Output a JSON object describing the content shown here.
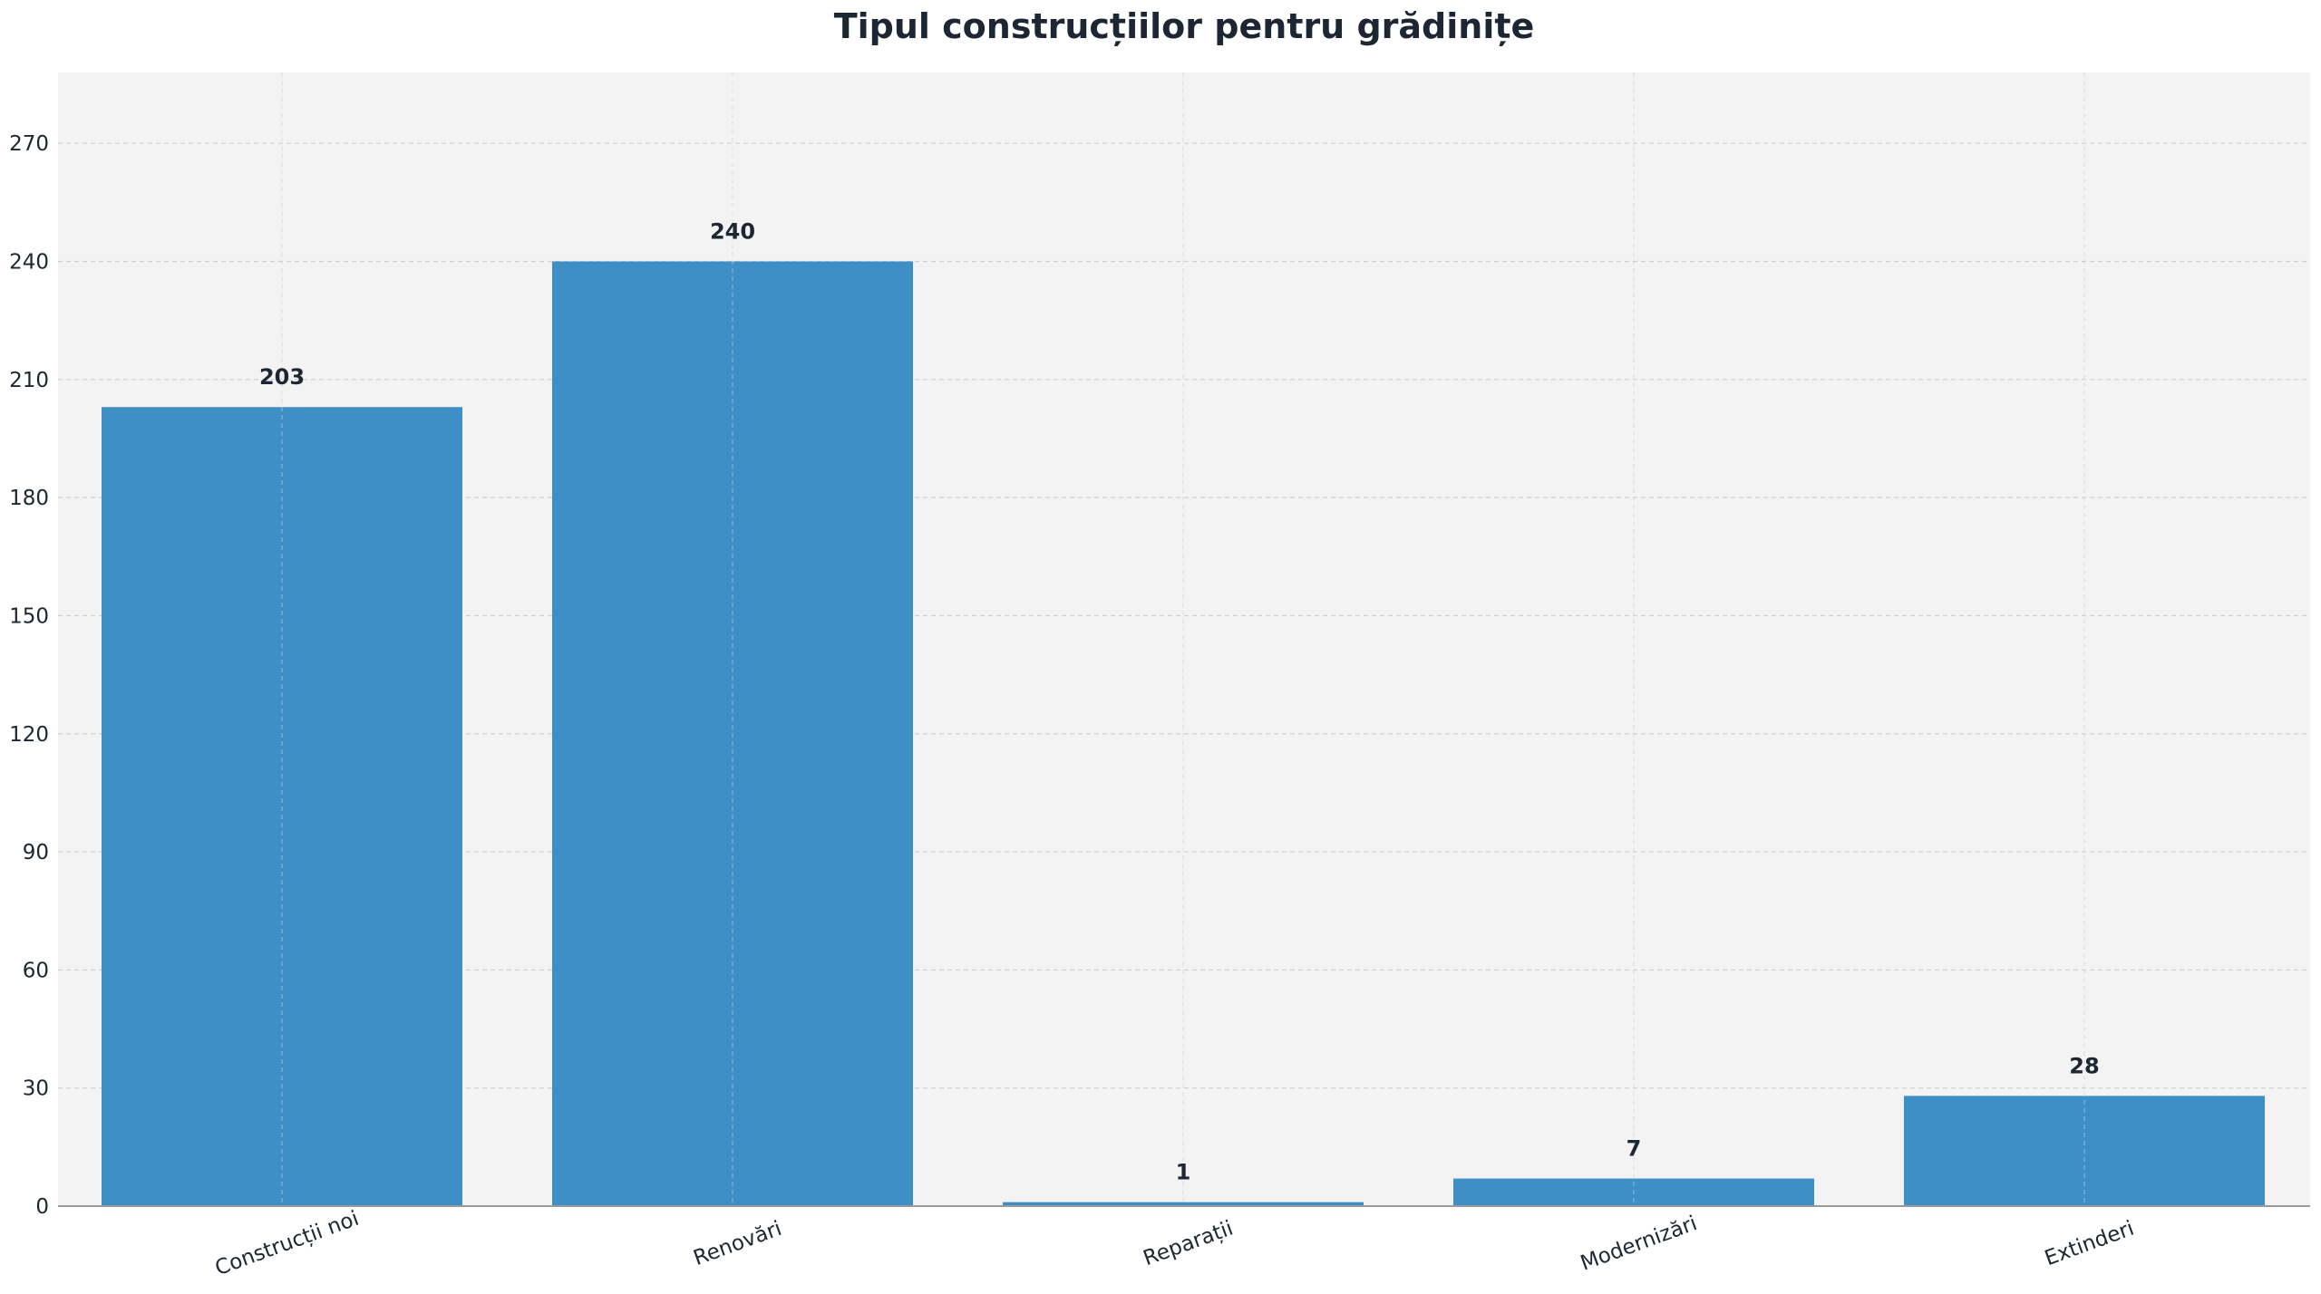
{
  "chart_data": {
    "type": "bar",
    "title": "Tipul construcțiilor pentru grădinițe",
    "categories": [
      "Construcții noi",
      "Renovări",
      "Reparații",
      "Modernizări",
      "Extinderi"
    ],
    "values": [
      203,
      240,
      1,
      7,
      28
    ],
    "xlabel": "",
    "ylabel": "",
    "ylim": [
      0,
      288
    ],
    "yticks": [
      0,
      30,
      60,
      90,
      120,
      150,
      180,
      210,
      240,
      270
    ],
    "xtick_rotation_deg": -20,
    "grid": true,
    "legend": false
  },
  "colors": {
    "bar": "#3f8fc7",
    "plot_background": "#f3f3f3",
    "page_background": "#ffffff",
    "text": "#1c2733"
  }
}
